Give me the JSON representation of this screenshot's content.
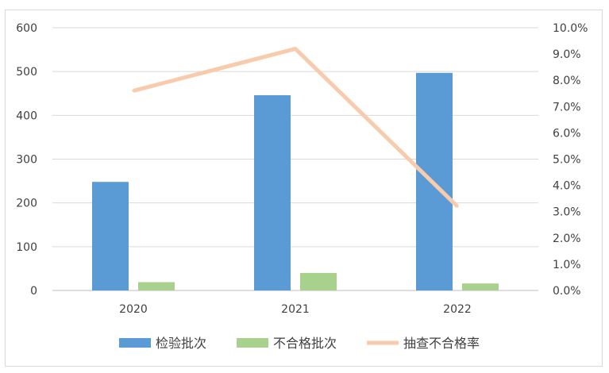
{
  "chart_data": {
    "type": "bar",
    "categories": [
      "2020",
      "2021",
      "2022"
    ],
    "series": [
      {
        "name": "检验批次",
        "kind": "bar",
        "axis": "left",
        "color": "#5b9bd5",
        "values": [
          248,
          446,
          497
        ]
      },
      {
        "name": "不合格批次",
        "kind": "bar",
        "axis": "left",
        "color": "#a9d18e",
        "values": [
          19,
          40,
          16
        ]
      },
      {
        "name": "抽查不合格率",
        "kind": "line",
        "axis": "right",
        "color": "#f8cbad",
        "values": [
          0.076,
          0.092,
          0.032
        ]
      }
    ],
    "y_left": {
      "min": 0,
      "max": 600,
      "ticks": [
        "600",
        "500",
        "400",
        "300",
        "200",
        "100",
        "0"
      ]
    },
    "y_right": {
      "min": 0,
      "max": 0.1,
      "ticks": [
        "10.0%",
        "9.0%",
        "8.0%",
        "7.0%",
        "6.0%",
        "5.0%",
        "4.0%",
        "3.0%",
        "2.0%",
        "1.0%",
        "0.0%"
      ]
    },
    "grid": true,
    "legend": "bottom",
    "title": "",
    "xlabel": "",
    "ylabel": ""
  }
}
